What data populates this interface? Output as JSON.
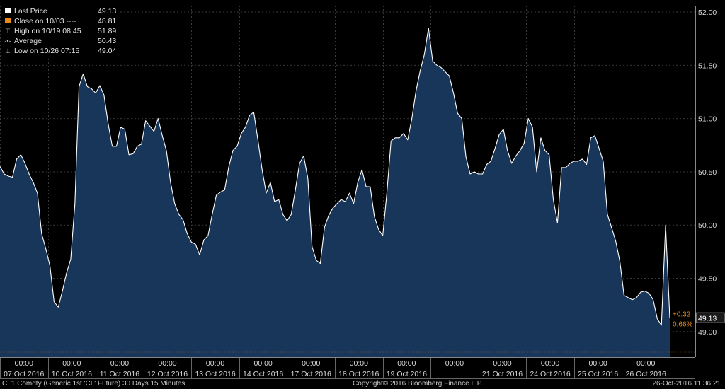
{
  "legend": [
    {
      "marker": "square-white",
      "label": "Last Price",
      "value": "49.13"
    },
    {
      "marker": "square-orange",
      "label": "Close on 10/03 ----",
      "value": "48.81"
    },
    {
      "marker": "high-marker-icon",
      "label": "High on 10/19 08:45",
      "value": "51.89"
    },
    {
      "marker": "average-marker-icon",
      "label": "Average",
      "value": "50.43"
    },
    {
      "marker": "low-marker-icon",
      "label": "Low on 10/26 07:15",
      "value": "49.04"
    }
  ],
  "footer": {
    "left": "CL1 Comdty (Generic 1st 'CL' Future) 30 Days 15 Minutes",
    "center": "Copyright© 2016 Bloomberg Finance L.P.",
    "right": "26-Oct-2016 11:36:21"
  },
  "colors": {
    "background": "#000000",
    "fill": "#18355a",
    "line": "#ffffff",
    "grid": "#3a3a3a",
    "close_line": "#e8891c",
    "change_text": "#e8891c"
  },
  "chart_data": {
    "type": "area",
    "ylim": [
      48.76,
      52.06
    ],
    "y_ticks": [
      "52.00",
      "51.50",
      "51.00",
      "50.50",
      "50.00",
      "49.50",
      "49.00"
    ],
    "y_tick_values": [
      52.0,
      51.5,
      51.0,
      50.5,
      50.0,
      49.5,
      49.0
    ],
    "time_labels": [
      "00:00",
      "00:00",
      "00:00",
      "00:00",
      "00:00",
      "00:00",
      "00:00",
      "00:00",
      "00:00",
      "00:00",
      "00:00",
      "00:00",
      "00:00",
      "00:00"
    ],
    "date_labels": [
      "07 Oct 2016",
      "10 Oct 2016",
      "11 Oct 2016",
      "12 Oct 2016",
      "13 Oct 2016",
      "14 Oct 2016",
      "17 Oct 2016",
      "18 Oct 2016",
      "19 Oct 2016",
      "",
      "21 Oct 2016",
      "24 Oct 2016",
      "25 Oct 2016",
      "26 Oct 2016"
    ],
    "close_reference": 48.81,
    "last_price_label": "49.13",
    "change_abs": "+0.32",
    "change_pct": "0.66%",
    "series": [
      {
        "name": "Last Price",
        "values": [
          50.55,
          50.48,
          50.46,
          50.45,
          50.62,
          50.66,
          50.58,
          50.48,
          50.4,
          50.3,
          49.92,
          49.78,
          49.62,
          49.28,
          49.23,
          49.38,
          49.55,
          49.68,
          50.2,
          51.3,
          51.42,
          51.3,
          51.28,
          51.24,
          51.31,
          51.22,
          50.95,
          50.74,
          50.74,
          50.92,
          50.9,
          50.66,
          50.67,
          50.74,
          50.76,
          50.98,
          50.93,
          50.88,
          51.0,
          50.84,
          50.7,
          50.4,
          50.2,
          50.1,
          50.05,
          49.92,
          49.84,
          49.82,
          49.72,
          49.86,
          49.9,
          50.1,
          50.28,
          50.31,
          50.33,
          50.55,
          50.7,
          50.74,
          50.86,
          50.92,
          51.03,
          51.06,
          50.8,
          50.52,
          50.3,
          50.4,
          50.22,
          50.24,
          50.1,
          50.04,
          50.1,
          50.33,
          50.58,
          50.65,
          50.44,
          49.8,
          49.67,
          49.64,
          49.98,
          50.09,
          50.16,
          50.2,
          50.24,
          50.22,
          50.3,
          50.2,
          50.4,
          50.52,
          50.36,
          50.36,
          50.08,
          49.96,
          49.9,
          50.3,
          50.79,
          50.82,
          50.82,
          50.86,
          50.8,
          51.0,
          51.26,
          51.45,
          51.6,
          51.85,
          51.54,
          51.5,
          51.48,
          51.44,
          51.4,
          51.24,
          51.05,
          51.0,
          50.64,
          50.48,
          50.5,
          50.48,
          50.48,
          50.57,
          50.6,
          50.72,
          50.85,
          50.9,
          50.7,
          50.58,
          50.65,
          50.7,
          50.77,
          51.0,
          50.92,
          50.5,
          50.82,
          50.7,
          50.66,
          50.24,
          50.02,
          50.54,
          50.54,
          50.58,
          50.6,
          50.6,
          50.62,
          50.57,
          50.82,
          50.84,
          50.72,
          50.6,
          50.1,
          49.98,
          49.85,
          49.66,
          49.34,
          49.32,
          49.3,
          49.32,
          49.37,
          49.38,
          49.36,
          49.3,
          49.12,
          49.06,
          50.0,
          49.13
        ]
      }
    ]
  }
}
